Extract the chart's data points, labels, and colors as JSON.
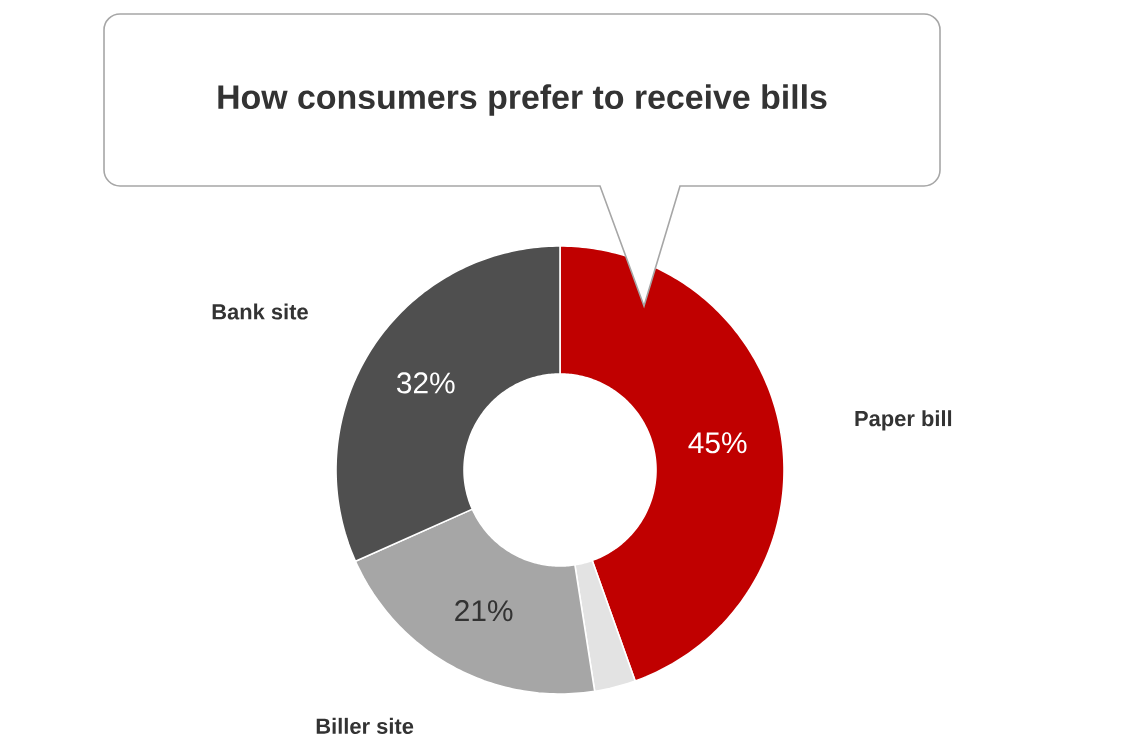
{
  "chart_data": {
    "type": "donut",
    "title": "How consumers prefer to receive bills",
    "categories": [
      "Paper bill",
      null,
      "Biller site",
      "Bank site"
    ],
    "values": [
      45,
      3,
      21,
      32
    ],
    "colors": [
      "#c00000",
      "#e3e3e3",
      "#a6a6a6",
      "#4f4f4f"
    ],
    "value_labels": [
      "45%",
      null,
      "21%",
      "32%"
    ]
  }
}
